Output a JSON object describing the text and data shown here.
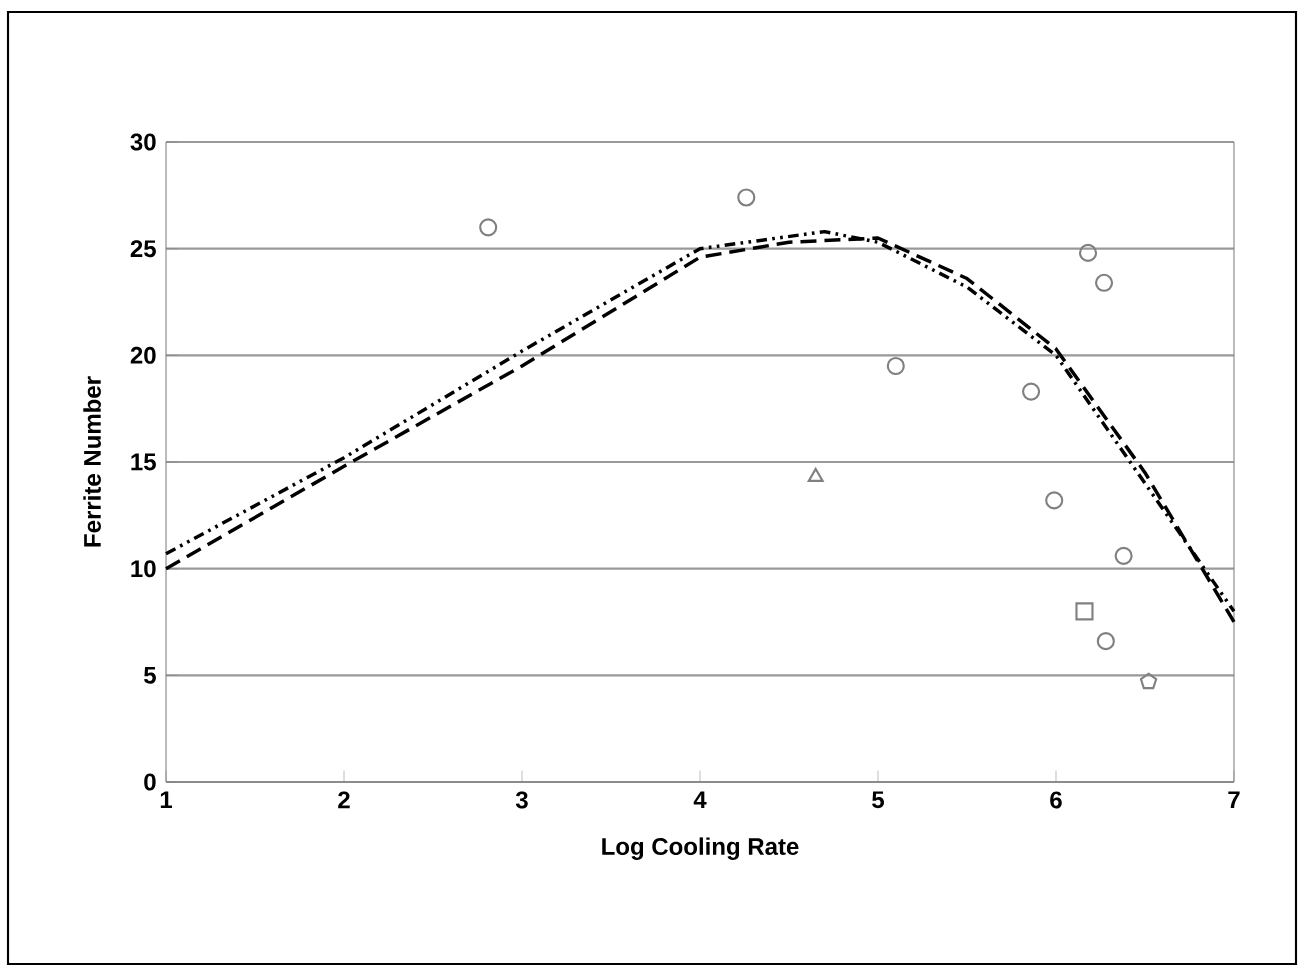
{
  "chart_data": {
    "type": "scatter",
    "xlabel": "Log Cooling Rate",
    "ylabel": "Ferrite Number",
    "xlim": [
      1,
      7
    ],
    "xticks": [
      1,
      2,
      3,
      4,
      5,
      6,
      7
    ],
    "ylim": [
      0,
      30
    ],
    "yticks": [
      0,
      5,
      10,
      15,
      20,
      25,
      30
    ],
    "grid": "y",
    "series": [
      {
        "marker": "circle",
        "color": "#808080",
        "x": [
          2.81,
          4.26,
          5.1,
          5.86,
          5.99,
          6.18,
          6.27,
          6.38,
          6.28
        ],
        "values": [
          26.0,
          27.4,
          19.5,
          18.3,
          13.2,
          24.8,
          23.4,
          10.6,
          6.6
        ]
      },
      {
        "marker": "triangle",
        "color": "#808080",
        "x": [
          4.65
        ],
        "values": [
          14.3
        ]
      },
      {
        "marker": "square",
        "color": "#808080",
        "x": [
          6.16
        ],
        "values": [
          8.0
        ]
      },
      {
        "color": "#808080",
        "x": [
          6.52
        ],
        "values": [
          4.7
        ]
      },
      {
        "type": "line",
        "marker": "none",
        "line_style": "dashed",
        "color": "#000000",
        "x": [
          1,
          2,
          3,
          4,
          4.5,
          5,
          5.5,
          6,
          6.5,
          7
        ],
        "values": [
          10.0,
          14.8,
          19.5,
          24.6,
          25.3,
          25.5,
          23.6,
          20.3,
          14.5,
          7.5
        ]
      },
      {
        "type": "line",
        "marker": "none",
        "line_style": "dotted",
        "color": "#000000",
        "x": [
          1,
          2,
          3,
          4,
          4.7,
          5,
          5.5,
          6,
          6.5,
          7
        ],
        "values": [
          10.7,
          15.2,
          20.2,
          25.0,
          25.8,
          25.3,
          23.2,
          20.0,
          14.0,
          8.0
        ]
      }
    ]
  }
}
